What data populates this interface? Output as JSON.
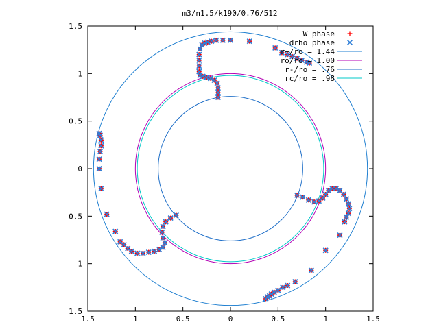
{
  "chart_data": {
    "type": "scatter",
    "title": "m3/n1.5/k190/0.76/512",
    "xlabel": "",
    "ylabel": "",
    "xlim": [
      -1.5,
      1.5
    ],
    "ylim": [
      -1.5,
      1.5
    ],
    "grid": false,
    "legend_position": "top-right",
    "x_tick_labels": [
      "1.5",
      "1",
      "0.5",
      "0",
      "0.5",
      "1",
      "1.5"
    ],
    "y_tick_labels": [
      "1.5",
      "1",
      "0.5",
      "0",
      "0.5",
      "1",
      "1.5"
    ],
    "tick_values": [
      -1.5,
      -1,
      -0.5,
      0,
      0.5,
      1,
      1.5
    ],
    "circles": [
      {
        "label": "r+/ro = 1.44",
        "r": 1.44,
        "color": "#1f7fd0"
      },
      {
        "label": "ro/ro = 1.00",
        "r": 1.0,
        "color": "#b400b4"
      },
      {
        "label": "r-/ro = .76",
        "r": 0.76,
        "color": "#1f6fc8"
      },
      {
        "label": "rc/ro = .98",
        "r": 0.98,
        "color": "#00c8c8"
      }
    ],
    "series": [
      {
        "name": "W phase",
        "marker": "+",
        "color": "#ff0000",
        "points": [
          [
            -0.13,
            0.75
          ],
          [
            -0.13,
            0.8
          ],
          [
            -0.13,
            0.85
          ],
          [
            -0.14,
            0.9
          ],
          [
            -0.17,
            0.93
          ],
          [
            -0.21,
            0.95
          ],
          [
            -0.25,
            0.96
          ],
          [
            -0.29,
            0.97
          ],
          [
            -0.32,
            0.98
          ],
          [
            -0.33,
            1.02
          ],
          [
            -0.33,
            1.08
          ],
          [
            -0.33,
            1.14
          ],
          [
            -0.33,
            1.2
          ],
          [
            -0.32,
            1.26
          ],
          [
            -0.3,
            1.3
          ],
          [
            -0.27,
            1.32
          ],
          [
            -0.24,
            1.33
          ],
          [
            -0.2,
            1.34
          ],
          [
            -0.15,
            1.35
          ],
          [
            -0.08,
            1.35
          ],
          [
            0.0,
            1.35
          ],
          [
            0.2,
            1.34
          ],
          [
            0.47,
            1.27
          ],
          [
            0.54,
            1.22
          ],
          [
            0.6,
            1.2
          ],
          [
            0.65,
            1.18
          ],
          [
            0.7,
            1.16
          ],
          [
            0.75,
            1.14
          ],
          [
            0.8,
            1.12
          ],
          [
            0.83,
            1.11
          ],
          [
            0.7,
            -0.28
          ],
          [
            0.76,
            -0.3
          ],
          [
            0.82,
            -0.33
          ],
          [
            0.88,
            -0.35
          ],
          [
            0.93,
            -0.34
          ],
          [
            0.97,
            -0.31
          ],
          [
            1.0,
            -0.27
          ],
          [
            1.03,
            -0.23
          ],
          [
            1.07,
            -0.21
          ],
          [
            1.11,
            -0.21
          ],
          [
            1.15,
            -0.23
          ],
          [
            1.19,
            -0.27
          ],
          [
            1.22,
            -0.32
          ],
          [
            1.24,
            -0.37
          ],
          [
            1.25,
            -0.42
          ],
          [
            1.24,
            -0.47
          ],
          [
            1.22,
            -0.51
          ],
          [
            1.2,
            -0.56
          ],
          [
            1.15,
            -0.7
          ],
          [
            1.0,
            -0.86
          ],
          [
            0.85,
            -1.07
          ],
          [
            0.68,
            -1.19
          ],
          [
            0.6,
            -1.23
          ],
          [
            0.55,
            -1.25
          ],
          [
            0.5,
            -1.28
          ],
          [
            0.46,
            -1.3
          ],
          [
            0.43,
            -1.32
          ],
          [
            0.41,
            -1.34
          ],
          [
            0.39,
            -1.35
          ],
          [
            0.37,
            -1.37
          ],
          [
            -0.57,
            -0.49
          ],
          [
            -0.63,
            -0.52
          ],
          [
            -0.68,
            -0.56
          ],
          [
            -0.71,
            -0.61
          ],
          [
            -0.72,
            -0.67
          ],
          [
            -0.71,
            -0.73
          ],
          [
            -0.69,
            -0.78
          ],
          [
            -0.71,
            -0.83
          ],
          [
            -0.75,
            -0.85
          ],
          [
            -0.8,
            -0.87
          ],
          [
            -0.86,
            -0.88
          ],
          [
            -0.92,
            -0.89
          ],
          [
            -0.98,
            -0.89
          ],
          [
            -1.04,
            -0.87
          ],
          [
            -1.08,
            -0.84
          ],
          [
            -1.12,
            -0.8
          ],
          [
            -1.16,
            -0.77
          ],
          [
            -1.21,
            -0.66
          ],
          [
            -1.3,
            -0.48
          ],
          [
            -1.36,
            -0.21
          ],
          [
            -1.38,
            0.0
          ],
          [
            -1.38,
            0.1
          ],
          [
            -1.37,
            0.18
          ],
          [
            -1.36,
            0.24
          ],
          [
            -1.36,
            0.3
          ],
          [
            -1.37,
            0.35
          ],
          [
            -1.38,
            0.37
          ]
        ]
      },
      {
        "name": "drho phase",
        "marker": "x",
        "color": "#2f7fd8",
        "points": [
          [
            -0.13,
            0.75
          ],
          [
            -0.13,
            0.8
          ],
          [
            -0.13,
            0.85
          ],
          [
            -0.14,
            0.9
          ],
          [
            -0.17,
            0.93
          ],
          [
            -0.21,
            0.95
          ],
          [
            -0.25,
            0.96
          ],
          [
            -0.29,
            0.97
          ],
          [
            -0.32,
            0.98
          ],
          [
            -0.33,
            1.02
          ],
          [
            -0.33,
            1.08
          ],
          [
            -0.33,
            1.14
          ],
          [
            -0.33,
            1.2
          ],
          [
            -0.32,
            1.26
          ],
          [
            -0.3,
            1.3
          ],
          [
            -0.27,
            1.32
          ],
          [
            -0.24,
            1.33
          ],
          [
            -0.2,
            1.34
          ],
          [
            -0.15,
            1.35
          ],
          [
            -0.08,
            1.35
          ],
          [
            0.0,
            1.35
          ],
          [
            0.2,
            1.34
          ],
          [
            0.47,
            1.27
          ],
          [
            0.54,
            1.22
          ],
          [
            0.6,
            1.2
          ],
          [
            0.65,
            1.18
          ],
          [
            0.7,
            1.16
          ],
          [
            0.75,
            1.14
          ],
          [
            0.8,
            1.12
          ],
          [
            0.83,
            1.11
          ],
          [
            0.7,
            -0.28
          ],
          [
            0.76,
            -0.3
          ],
          [
            0.82,
            -0.33
          ],
          [
            0.88,
            -0.35
          ],
          [
            0.93,
            -0.34
          ],
          [
            0.97,
            -0.31
          ],
          [
            1.0,
            -0.27
          ],
          [
            1.03,
            -0.23
          ],
          [
            1.07,
            -0.21
          ],
          [
            1.11,
            -0.21
          ],
          [
            1.15,
            -0.23
          ],
          [
            1.19,
            -0.27
          ],
          [
            1.22,
            -0.32
          ],
          [
            1.24,
            -0.37
          ],
          [
            1.25,
            -0.42
          ],
          [
            1.24,
            -0.47
          ],
          [
            1.22,
            -0.51
          ],
          [
            1.2,
            -0.56
          ],
          [
            1.15,
            -0.7
          ],
          [
            1.0,
            -0.86
          ],
          [
            0.85,
            -1.07
          ],
          [
            0.68,
            -1.19
          ],
          [
            0.6,
            -1.23
          ],
          [
            0.55,
            -1.25
          ],
          [
            0.5,
            -1.28
          ],
          [
            0.46,
            -1.3
          ],
          [
            0.43,
            -1.32
          ],
          [
            0.41,
            -1.34
          ],
          [
            0.39,
            -1.35
          ],
          [
            0.37,
            -1.37
          ],
          [
            -0.57,
            -0.49
          ],
          [
            -0.63,
            -0.52
          ],
          [
            -0.68,
            -0.56
          ],
          [
            -0.71,
            -0.61
          ],
          [
            -0.72,
            -0.67
          ],
          [
            -0.71,
            -0.73
          ],
          [
            -0.69,
            -0.78
          ],
          [
            -0.71,
            -0.83
          ],
          [
            -0.75,
            -0.85
          ],
          [
            -0.8,
            -0.87
          ],
          [
            -0.86,
            -0.88
          ],
          [
            -0.92,
            -0.89
          ],
          [
            -0.98,
            -0.89
          ],
          [
            -1.04,
            -0.87
          ],
          [
            -1.08,
            -0.84
          ],
          [
            -1.12,
            -0.8
          ],
          [
            -1.16,
            -0.77
          ],
          [
            -1.21,
            -0.66
          ],
          [
            -1.3,
            -0.48
          ],
          [
            -1.36,
            -0.21
          ],
          [
            -1.38,
            0.0
          ],
          [
            -1.38,
            0.1
          ],
          [
            -1.37,
            0.18
          ],
          [
            -1.36,
            0.24
          ],
          [
            -1.36,
            0.3
          ],
          [
            -1.37,
            0.35
          ],
          [
            -1.38,
            0.37
          ]
        ]
      }
    ]
  }
}
